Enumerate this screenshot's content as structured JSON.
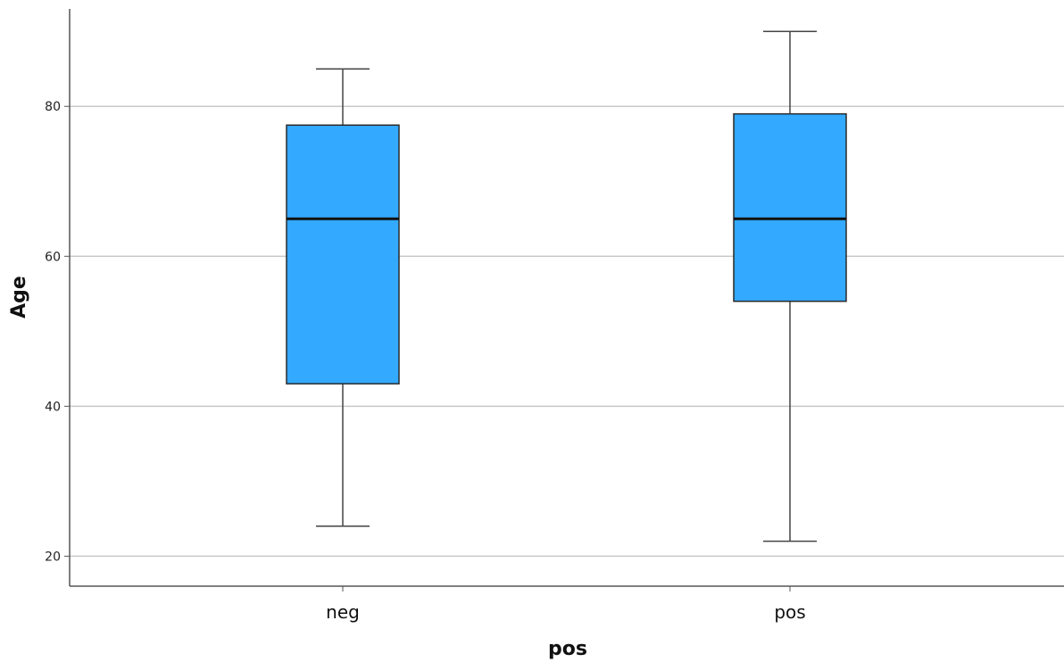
{
  "chart_data": {
    "type": "boxplot",
    "title": "",
    "xlabel": "pos",
    "ylabel": "Age",
    "ylim": [
      16,
      93
    ],
    "yticks": [
      20,
      40,
      60,
      80
    ],
    "grid": true,
    "colors": {
      "box_fill": "#33a9ff",
      "box_stroke": "#2a2a2a",
      "grid": "#c8c8c8",
      "axis": "#555555"
    },
    "categories": [
      "neg",
      "pos"
    ],
    "boxes": [
      {
        "label": "neg",
        "min": 24,
        "q1": 43,
        "median": 65,
        "q3": 77.5,
        "max": 85
      },
      {
        "label": "pos",
        "min": 22,
        "q1": 54,
        "median": 65,
        "q3": 79,
        "max": 90
      }
    ]
  }
}
